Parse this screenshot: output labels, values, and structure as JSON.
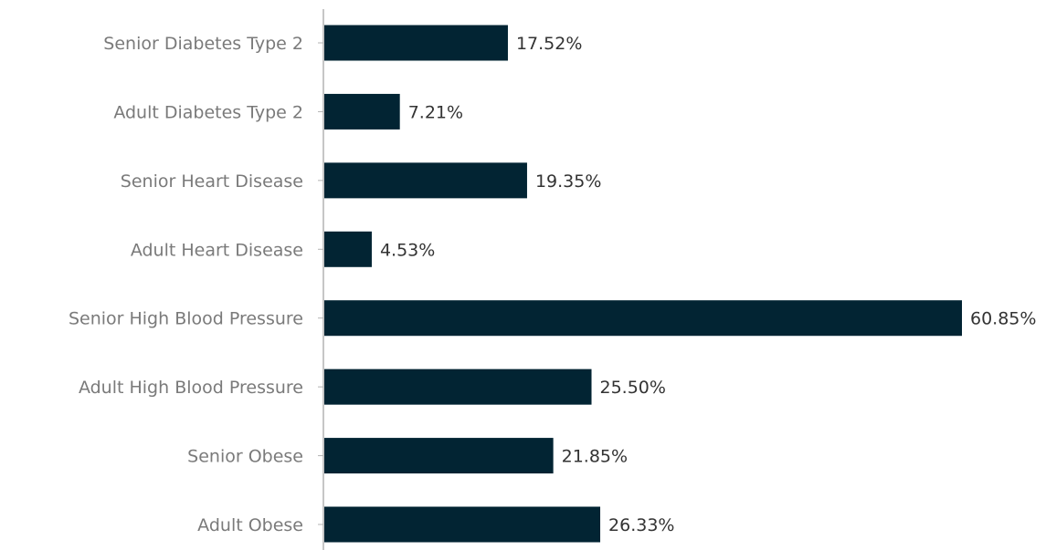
{
  "chart_data": {
    "type": "bar",
    "orientation": "horizontal",
    "title": "",
    "xlabel": "",
    "ylabel": "",
    "categories": [
      "Senior Diabetes Type 2",
      "Adult Diabetes Type 2",
      "Senior Heart Disease",
      "Adult Heart Disease",
      "Senior High Blood Pressure",
      "Adult High Blood Pressure",
      "Senior Obese",
      "Adult Obese"
    ],
    "values": [
      17.52,
      7.21,
      19.35,
      4.53,
      60.85,
      25.5,
      21.85,
      26.33
    ],
    "value_labels": [
      "17.52%",
      "7.21%",
      "19.35%",
      "4.53%",
      "60.85%",
      "25.50%",
      "21.85%",
      "26.33%"
    ],
    "xlim": [
      0,
      60.85
    ],
    "grid": false,
    "legend": "none",
    "bar_color": "#022433",
    "axis_color": "#b3b3b3"
  }
}
